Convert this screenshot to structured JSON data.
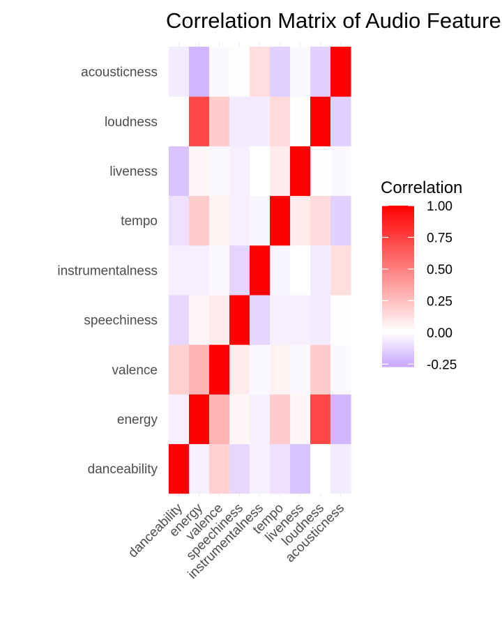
{
  "chart_data": {
    "type": "heatmap",
    "title": "Correlation Matrix of Audio Features",
    "variables": [
      "danceability",
      "energy",
      "valence",
      "speechiness",
      "instrumentalness",
      "tempo",
      "liveness",
      "loudness",
      "acousticness"
    ],
    "matrix": [
      [
        1.0,
        -0.05,
        0.18,
        -0.12,
        -0.05,
        -0.09,
        -0.18,
        0.0,
        -0.06
      ],
      [
        -0.05,
        1.0,
        0.3,
        0.03,
        -0.05,
        0.2,
        0.03,
        0.72,
        -0.22
      ],
      [
        0.18,
        0.3,
        1.0,
        0.08,
        -0.02,
        0.05,
        -0.02,
        0.2,
        -0.02
      ],
      [
        -0.12,
        0.03,
        0.08,
        1.0,
        -0.13,
        -0.05,
        -0.05,
        -0.06,
        0.01
      ],
      [
        -0.05,
        -0.05,
        -0.02,
        -0.13,
        1.0,
        -0.03,
        0.0,
        -0.06,
        0.13
      ],
      [
        -0.09,
        0.2,
        0.05,
        -0.05,
        -0.03,
        1.0,
        0.08,
        0.14,
        -0.14
      ],
      [
        -0.18,
        0.03,
        -0.02,
        -0.05,
        0.0,
        0.08,
        1.0,
        0.01,
        -0.02
      ],
      [
        0.0,
        0.72,
        0.2,
        -0.06,
        -0.06,
        0.14,
        0.01,
        1.0,
        -0.14
      ],
      [
        -0.06,
        -0.22,
        -0.02,
        0.01,
        0.13,
        -0.14,
        -0.02,
        -0.14,
        1.0
      ]
    ],
    "legend": {
      "title": "Correlation",
      "ticks": [
        "1.00",
        "0.75",
        "0.50",
        "0.25",
        "0.00",
        "-0.25"
      ],
      "tick_values": [
        1.0,
        0.75,
        0.5,
        0.25,
        0.0,
        -0.25
      ],
      "range": [
        -0.27,
        1.0
      ],
      "placement": "right"
    },
    "colors": {
      "high": "#ff0000",
      "mid": "#ffffff",
      "low": "#c8a6ff"
    },
    "grid": false
  }
}
